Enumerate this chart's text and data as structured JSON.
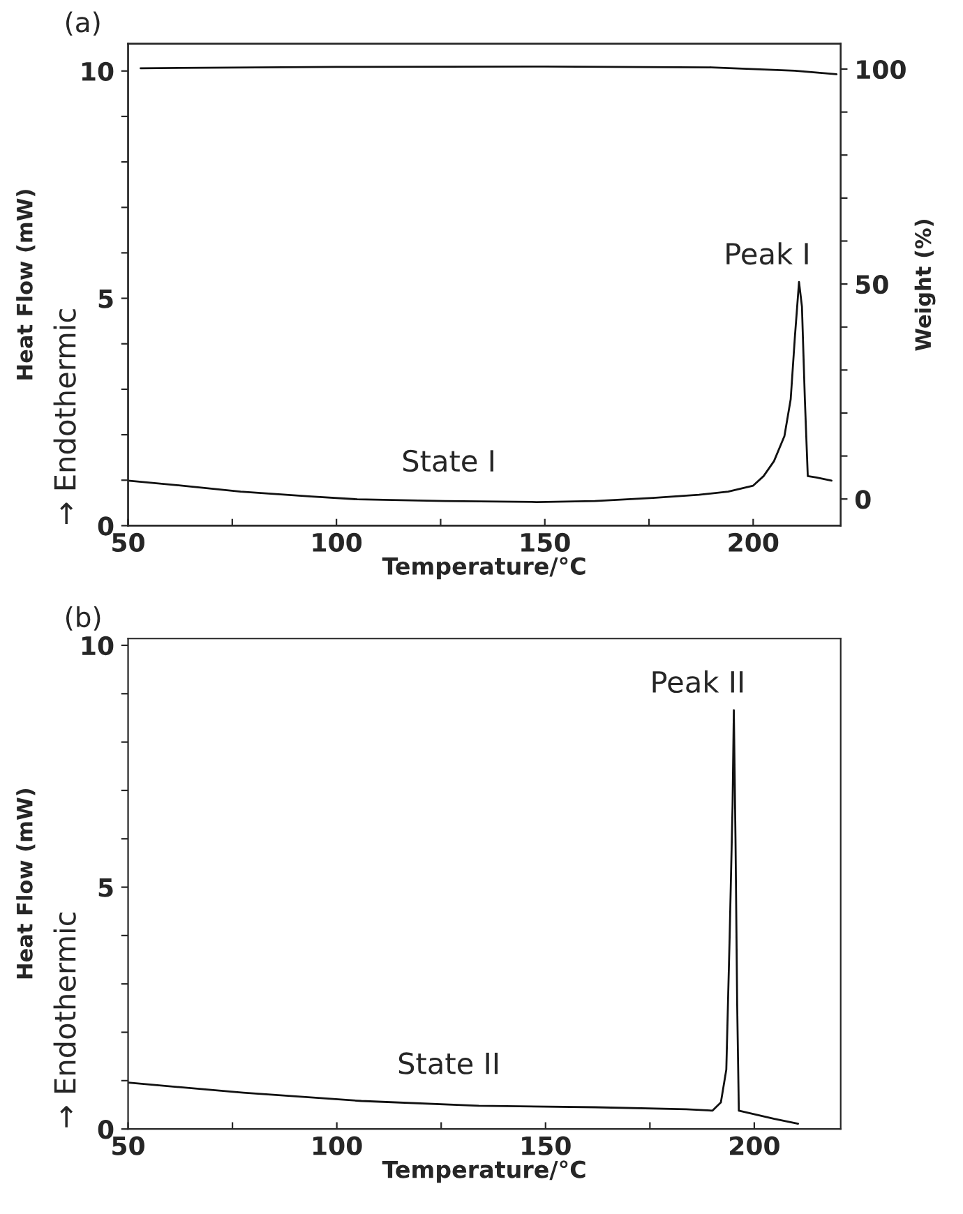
{
  "chart_data": [
    {
      "type": "line",
      "title": "(a)",
      "xlabel": "Temperature/°C",
      "ylabel": "Heat Flow (mW)",
      "y2label": "Weight (%)",
      "annotations": [
        "→ Endothermic",
        "Peak I",
        "State I"
      ],
      "xlim": [
        50,
        221
      ],
      "xticks": [
        50,
        {
          "value": 75,
          "label": null
        },
        100,
        {
          "value": 125,
          "label": null
        },
        150,
        {
          "value": 175,
          "label": null
        },
        200
      ],
      "ylim": [
        0,
        10.6
      ],
      "yticks": [
        0,
        {
          "value": 1,
          "label": null
        },
        {
          "value": 2,
          "label": null
        },
        {
          "value": 3,
          "label": null
        },
        {
          "value": 4,
          "label": null
        },
        5,
        {
          "value": 6,
          "label": null
        },
        {
          "value": 7,
          "label": null
        },
        {
          "value": 8,
          "label": null
        },
        {
          "value": 9,
          "label": null
        },
        10
      ],
      "y2lim": [
        -6.2,
        105.9
      ],
      "y2ticks": [
        0,
        {
          "value": 10,
          "label": null
        },
        {
          "value": 20,
          "label": null
        },
        {
          "value": 30,
          "label": null
        },
        {
          "value": 40,
          "label": null
        },
        50,
        {
          "value": 60,
          "label": null
        },
        {
          "value": 70,
          "label": null
        },
        {
          "value": 80,
          "label": null
        },
        {
          "value": 90,
          "label": null
        },
        100
      ],
      "grid": false,
      "series": [
        {
          "color": "#111111",
          "x": [
            50,
            63,
            77,
            94,
            105,
            126,
            148,
            162,
            176,
            187,
            194,
            200,
            202.5,
            205,
            207.5,
            209,
            210,
            211,
            211.7,
            212.4,
            213.1,
            215.2,
            218.8
          ],
          "values": [
            0.99,
            0.88,
            0.75,
            0.64,
            0.58,
            0.54,
            0.52,
            0.54,
            0.61,
            0.68,
            0.75,
            0.88,
            1.09,
            1.42,
            1.97,
            2.78,
            4.14,
            5.36,
            4.82,
            2.78,
            1.09,
            1.06,
            0.99
          ]
        },
        {
          "color": "#111111",
          "axis": "y2",
          "x": [
            53,
            100,
            150,
            190,
            210,
            220
          ],
          "values": [
            100.2,
            100.5,
            100.6,
            100.4,
            99.6,
            98.8
          ]
        }
      ]
    },
    {
      "type": "line",
      "title": "(b)",
      "xlabel": "Temperature/°C",
      "ylabel": "Heat Flow (mW)",
      "annotations": [
        "→ Endothermic",
        "Peak II",
        "State II"
      ],
      "xlim": [
        50,
        220.7
      ],
      "xticks": [
        50,
        {
          "value": 75,
          "label": null
        },
        100,
        {
          "value": 125,
          "label": null
        },
        150,
        {
          "value": 175,
          "label": null
        },
        200
      ],
      "ylim": [
        0,
        10.14
      ],
      "yticks": [
        0,
        {
          "value": 1,
          "label": null
        },
        {
          "value": 2,
          "label": null
        },
        {
          "value": 3,
          "label": null
        },
        {
          "value": 4,
          "label": null
        },
        5,
        {
          "value": 6,
          "label": null
        },
        {
          "value": 7,
          "label": null
        },
        {
          "value": 8,
          "label": null
        },
        {
          "value": 9,
          "label": null
        },
        10
      ],
      "grid": false,
      "series": [
        {
          "color": "#111111",
          "x": [
            50,
            77.6,
            105.9,
            134,
            162,
            183.7,
            190,
            192,
            193.3,
            194.1,
            194.8,
            195.1,
            195.5,
            195.9,
            196.3,
            204.8,
            210.5
          ],
          "values": [
            0.96,
            0.75,
            0.58,
            0.48,
            0.45,
            0.41,
            0.38,
            0.55,
            1.23,
            3.97,
            6.7,
            8.66,
            6.0,
            2.6,
            0.38,
            0.21,
            0.11
          ]
        }
      ]
    }
  ]
}
